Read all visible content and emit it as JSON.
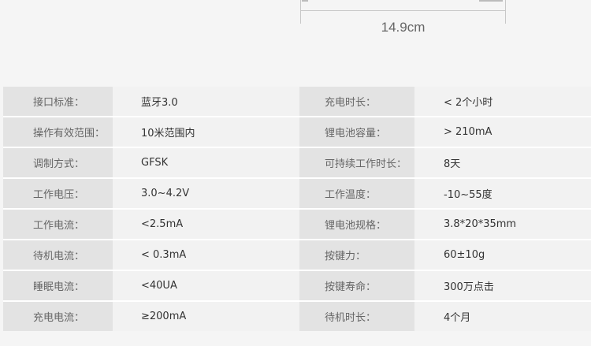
{
  "dimension": {
    "label": "14.9cm"
  },
  "specs": [
    {
      "k1": "接口标准：",
      "v1": "蓝牙3.0",
      "k2": "充电时长：",
      "v2": "< 2个小时"
    },
    {
      "k1": "操作有效范围：",
      "v1": "10米范围内",
      "k2": "锂电池容量：",
      "v2": "> 210mA"
    },
    {
      "k1": "调制方式：",
      "v1": "GFSK",
      "k2": "可持续工作时长：",
      "v2": "8天"
    },
    {
      "k1": "工作电压：",
      "v1": "3.0~4.2V",
      "k2": "工作温度：",
      "v2": "-10~55度"
    },
    {
      "k1": "工作电流：",
      "v1": "<2.5mA",
      "k2": "锂电池规格：",
      "v2": "3.8*20*35mm"
    },
    {
      "k1": "待机电流：",
      "v1": "< 0.3mA",
      "k2": "按键力：",
      "v2": "60±10g"
    },
    {
      "k1": "睡眠电流：",
      "v1": "<40UA",
      "k2": "按键寿命：",
      "v2": "300万点击"
    },
    {
      "k1": "充电电流：",
      "v1": "≥200mA",
      "k2": "待机时长：",
      "v2": "4个月"
    }
  ]
}
